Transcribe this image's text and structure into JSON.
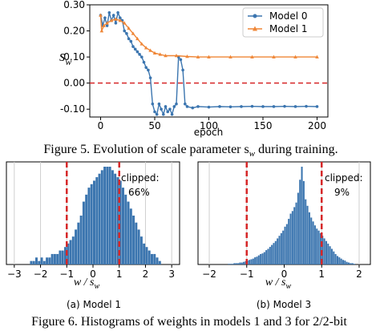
{
  "figure5": {
    "caption": "Figure 5. Evolution of scale parameter s",
    "caption_sub": "w",
    "caption_tail": " during training.",
    "ylabel": "s",
    "ylabel_sub": "w",
    "xlabel": "epoch"
  },
  "figure6": {
    "caption": "Figure 6.  Histograms of weights in models 1 and 3 for 2/2-bit",
    "panel_a": {
      "label": "(a) Model 1",
      "annotation": [
        "clipped:",
        "66%"
      ],
      "xlabel": "w / s",
      "xlabel_sub": "w"
    },
    "panel_b": {
      "label": "(b) Model 3",
      "annotation": [
        "clipped:",
        "9%"
      ],
      "xlabel": "w / s",
      "xlabel_sub": "w"
    }
  },
  "colors": {
    "model0": "#3b75af",
    "model1": "#ef8636",
    "threshold": "#d62728",
    "hist": "#3b75af"
  },
  "chart_data": [
    {
      "type": "line",
      "xlim": [
        -10,
        210
      ],
      "ylim": [
        -0.13,
        0.3
      ],
      "x_ticks": [
        0,
        50,
        100,
        150,
        200
      ],
      "x_tick_labels": [
        "0",
        "50",
        "100",
        "150",
        "200"
      ],
      "y_ticks": [
        0.3,
        0.2,
        0.1,
        0.0,
        -0.1
      ],
      "y_tick_labels": [
        "0.30",
        "0.20",
        "0.10",
        "0.00",
        "-0.10"
      ],
      "reference_line": {
        "y": 0.0,
        "style": "dashed"
      },
      "legend_position": "top-right",
      "series": [
        {
          "name": "Model 0",
          "marker": "circle",
          "points": [
            [
              0,
              0.26
            ],
            [
              2,
              0.22
            ],
            [
              4,
              0.25
            ],
            [
              6,
              0.22
            ],
            [
              8,
              0.27
            ],
            [
              10,
              0.24
            ],
            [
              12,
              0.26
            ],
            [
              14,
              0.23
            ],
            [
              16,
              0.27
            ],
            [
              18,
              0.25
            ],
            [
              20,
              0.24
            ],
            [
              22,
              0.2
            ],
            [
              24,
              0.19
            ],
            [
              26,
              0.17
            ],
            [
              28,
              0.16
            ],
            [
              30,
              0.14
            ],
            [
              32,
              0.13
            ],
            [
              34,
              0.12
            ],
            [
              36,
              0.11
            ],
            [
              38,
              0.1
            ],
            [
              40,
              0.08
            ],
            [
              42,
              0.06
            ],
            [
              44,
              0.05
            ],
            [
              46,
              0.02
            ],
            [
              48,
              -0.08
            ],
            [
              50,
              -0.11
            ],
            [
              52,
              -0.12
            ],
            [
              54,
              -0.08
            ],
            [
              56,
              -0.1
            ],
            [
              58,
              -0.12
            ],
            [
              60,
              -0.09
            ],
            [
              62,
              -0.11
            ],
            [
              64,
              -0.1
            ],
            [
              66,
              -0.12
            ],
            [
              68,
              -0.09
            ],
            [
              70,
              -0.08
            ],
            [
              72,
              0.1
            ],
            [
              74,
              0.09
            ],
            [
              76,
              0.05
            ],
            [
              78,
              -0.08
            ],
            [
              80,
              -0.09
            ],
            [
              85,
              -0.095
            ],
            [
              90,
              -0.09
            ],
            [
              100,
              -0.092
            ],
            [
              110,
              -0.09
            ],
            [
              120,
              -0.091
            ],
            [
              130,
              -0.09
            ],
            [
              140,
              -0.089
            ],
            [
              150,
              -0.09
            ],
            [
              160,
              -0.09
            ],
            [
              170,
              -0.089
            ],
            [
              180,
              -0.09
            ],
            [
              190,
              -0.089
            ],
            [
              200,
              -0.09
            ]
          ]
        },
        {
          "name": "Model 1",
          "marker": "triangle",
          "points": [
            [
              0,
              0.26
            ],
            [
              1,
              0.2
            ],
            [
              3,
              0.22
            ],
            [
              6,
              0.23
            ],
            [
              10,
              0.24
            ],
            [
              14,
              0.245
            ],
            [
              18,
              0.24
            ],
            [
              22,
              0.23
            ],
            [
              26,
              0.21
            ],
            [
              30,
              0.19
            ],
            [
              34,
              0.17
            ],
            [
              38,
              0.15
            ],
            [
              42,
              0.135
            ],
            [
              46,
              0.125
            ],
            [
              50,
              0.115
            ],
            [
              55,
              0.11
            ],
            [
              60,
              0.105
            ],
            [
              70,
              0.105
            ],
            [
              80,
              0.102
            ],
            [
              90,
              0.1
            ],
            [
              100,
              0.1
            ],
            [
              120,
              0.1
            ],
            [
              140,
              0.1
            ],
            [
              160,
              0.1
            ],
            [
              180,
              0.1
            ],
            [
              200,
              0.1
            ]
          ]
        }
      ]
    },
    {
      "type": "bar",
      "panel": "(a) Model 1",
      "xlim": [
        -3.3,
        3.3
      ],
      "x_ticks": [
        -3,
        -2,
        -1,
        0,
        1,
        2,
        3
      ],
      "x_tick_labels": [
        "−3",
        "−2",
        "−1",
        "0",
        "1",
        "2",
        "3"
      ],
      "thresholds": [
        -1,
        1
      ],
      "bin_width": 0.1,
      "bins_start": -2.4,
      "values": [
        1,
        1,
        2,
        1,
        2,
        1,
        2,
        2,
        3,
        3,
        3,
        4,
        4,
        5,
        6,
        7,
        8,
        10,
        12,
        14,
        18,
        20,
        22,
        23,
        24,
        25,
        26,
        27,
        28,
        28,
        28,
        27,
        26,
        25,
        24,
        22,
        20,
        18,
        16,
        14,
        12,
        10,
        8,
        6,
        5,
        4,
        3,
        3,
        2,
        1
      ]
    },
    {
      "type": "bar",
      "panel": "(b) Model 3",
      "xlim": [
        -2.3,
        2.3
      ],
      "x_ticks": [
        -2,
        -1,
        0,
        1,
        2
      ],
      "x_tick_labels": [
        "−2",
        "−1",
        "0",
        "1",
        "2"
      ],
      "thresholds": [
        -1,
        1
      ],
      "bin_width": 0.05,
      "bins_start": -1.5,
      "values": [
        1,
        1,
        1,
        2,
        2,
        2,
        3,
        3,
        4,
        5,
        6,
        7,
        8,
        9,
        11,
        12,
        14,
        16,
        17,
        19,
        22,
        24,
        27,
        30,
        33,
        36,
        40,
        44,
        48,
        52,
        58,
        62,
        70,
        78,
        82,
        88,
        95,
        110,
        130,
        150,
        128,
        100,
        90,
        80,
        72,
        66,
        60,
        55,
        52,
        48,
        44,
        40,
        36,
        32,
        28,
        24,
        20,
        16,
        13,
        11,
        9,
        7,
        6,
        4,
        3,
        2,
        2,
        1
      ]
    }
  ]
}
